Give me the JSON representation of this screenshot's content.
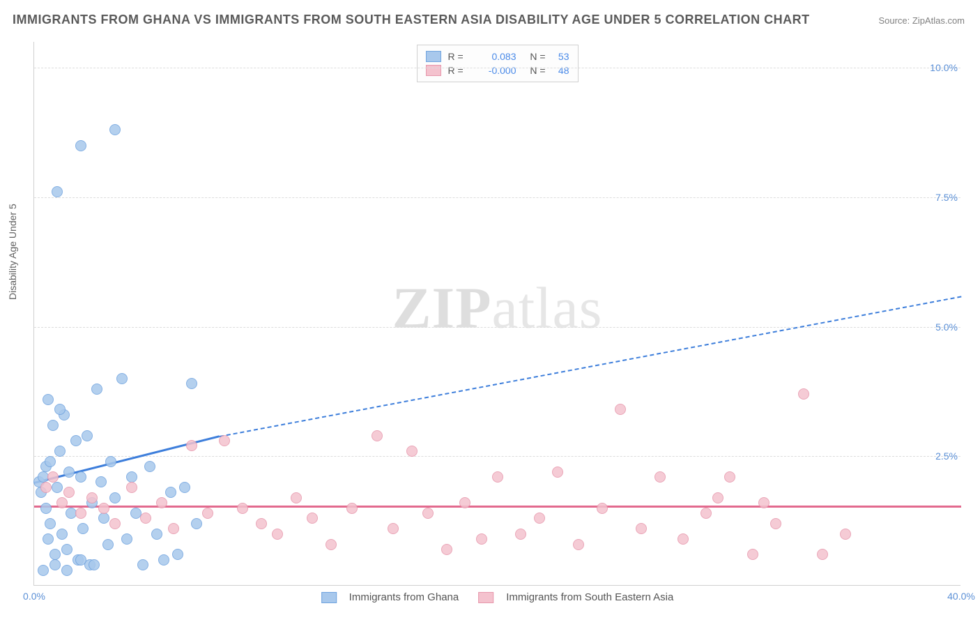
{
  "title": "IMMIGRANTS FROM GHANA VS IMMIGRANTS FROM SOUTH EASTERN ASIA DISABILITY AGE UNDER 5 CORRELATION CHART",
  "source": "Source: ZipAtlas.com",
  "y_axis_label": "Disability Age Under 5",
  "watermark_a": "ZIP",
  "watermark_b": "atlas",
  "chart": {
    "type": "scatter",
    "xlim": [
      0,
      40
    ],
    "ylim": [
      0,
      10.5
    ],
    "background_color": "#ffffff",
    "grid_color": "#dcdcdc",
    "axis_color": "#d0d0d0",
    "tick_label_color": "#5a8fd6",
    "tick_fontsize": 14,
    "y_gridlines": [
      2.5,
      5.0,
      7.5,
      10.0
    ],
    "y_tick_labels": [
      "2.5%",
      "5.0%",
      "7.5%",
      "10.0%"
    ],
    "x_ticks": [
      0,
      40
    ],
    "x_tick_labels": [
      "0.0%",
      "40.0%"
    ],
    "marker_radius": 8,
    "marker_fill_opacity": 0.35,
    "series": [
      {
        "name": "Immigrants from Ghana",
        "color_fill": "#a8c8ec",
        "color_stroke": "#6fa3df",
        "R": "0.083",
        "N": "53",
        "trend": {
          "x1": 0,
          "y1": 2.0,
          "x2_solid": 8,
          "y2_solid": 2.9,
          "x2_dash": 40,
          "y2_dash": 5.6,
          "color": "#3d7edb"
        },
        "points": [
          [
            0.2,
            2.0
          ],
          [
            0.3,
            1.8
          ],
          [
            0.4,
            2.1
          ],
          [
            0.5,
            1.5
          ],
          [
            0.5,
            2.3
          ],
          [
            0.6,
            0.9
          ],
          [
            0.7,
            2.4
          ],
          [
            0.7,
            1.2
          ],
          [
            0.8,
            3.1
          ],
          [
            0.9,
            0.6
          ],
          [
            1.0,
            1.9
          ],
          [
            1.1,
            2.6
          ],
          [
            1.2,
            1.0
          ],
          [
            1.3,
            3.3
          ],
          [
            1.4,
            0.7
          ],
          [
            1.5,
            2.2
          ],
          [
            1.6,
            1.4
          ],
          [
            1.8,
            2.8
          ],
          [
            1.9,
            0.5
          ],
          [
            2.0,
            2.1
          ],
          [
            2.1,
            1.1
          ],
          [
            2.3,
            2.9
          ],
          [
            2.4,
            0.4
          ],
          [
            2.5,
            1.6
          ],
          [
            2.7,
            3.8
          ],
          [
            2.9,
            2.0
          ],
          [
            3.0,
            1.3
          ],
          [
            3.2,
            0.8
          ],
          [
            3.3,
            2.4
          ],
          [
            3.5,
            1.7
          ],
          [
            3.8,
            4.0
          ],
          [
            4.0,
            0.9
          ],
          [
            4.2,
            2.1
          ],
          [
            4.4,
            1.4
          ],
          [
            4.7,
            0.4
          ],
          [
            5.0,
            2.3
          ],
          [
            5.3,
            1.0
          ],
          [
            5.6,
            0.5
          ],
          [
            5.9,
            1.8
          ],
          [
            1.0,
            7.6
          ],
          [
            2.0,
            8.5
          ],
          [
            3.5,
            8.8
          ],
          [
            0.6,
            3.6
          ],
          [
            1.1,
            3.4
          ],
          [
            6.2,
            0.6
          ],
          [
            6.5,
            1.9
          ],
          [
            6.8,
            3.9
          ],
          [
            7.0,
            1.2
          ],
          [
            0.4,
            0.3
          ],
          [
            0.9,
            0.4
          ],
          [
            1.4,
            0.3
          ],
          [
            2.0,
            0.5
          ],
          [
            2.6,
            0.4
          ]
        ]
      },
      {
        "name": "Immigrants from South Eastern Asia",
        "color_fill": "#f4c2ce",
        "color_stroke": "#e797ac",
        "R": "-0.000",
        "N": "48",
        "trend": {
          "x1": 0,
          "y1": 1.55,
          "x2_solid": 40,
          "y2_solid": 1.55,
          "color": "#e26a8e"
        },
        "points": [
          [
            0.5,
            1.9
          ],
          [
            0.8,
            2.1
          ],
          [
            1.2,
            1.6
          ],
          [
            1.5,
            1.8
          ],
          [
            2.0,
            1.4
          ],
          [
            2.5,
            1.7
          ],
          [
            3.0,
            1.5
          ],
          [
            3.5,
            1.2
          ],
          [
            4.2,
            1.9
          ],
          [
            4.8,
            1.3
          ],
          [
            5.5,
            1.6
          ],
          [
            6.0,
            1.1
          ],
          [
            6.8,
            2.7
          ],
          [
            7.5,
            1.4
          ],
          [
            8.2,
            2.8
          ],
          [
            9.0,
            1.5
          ],
          [
            9.8,
            1.2
          ],
          [
            10.5,
            1.0
          ],
          [
            11.3,
            1.7
          ],
          [
            12.0,
            1.3
          ],
          [
            12.8,
            0.8
          ],
          [
            13.7,
            1.5
          ],
          [
            14.8,
            2.9
          ],
          [
            15.5,
            1.1
          ],
          [
            16.3,
            2.6
          ],
          [
            17.0,
            1.4
          ],
          [
            17.8,
            0.7
          ],
          [
            18.6,
            1.6
          ],
          [
            19.3,
            0.9
          ],
          [
            20.0,
            2.1
          ],
          [
            21.0,
            1.0
          ],
          [
            21.8,
            1.3
          ],
          [
            22.6,
            2.2
          ],
          [
            23.5,
            0.8
          ],
          [
            24.5,
            1.5
          ],
          [
            25.3,
            3.4
          ],
          [
            26.2,
            1.1
          ],
          [
            27.0,
            2.1
          ],
          [
            28.0,
            0.9
          ],
          [
            29.0,
            1.4
          ],
          [
            30.0,
            2.1
          ],
          [
            31.0,
            0.6
          ],
          [
            32.0,
            1.2
          ],
          [
            33.2,
            3.7
          ],
          [
            34.0,
            0.6
          ],
          [
            35.0,
            1.0
          ],
          [
            29.5,
            1.7
          ],
          [
            31.5,
            1.6
          ]
        ]
      }
    ]
  },
  "legend_bottom": {
    "series1": "Immigrants from Ghana",
    "series2": "Immigrants from South Eastern Asia"
  }
}
